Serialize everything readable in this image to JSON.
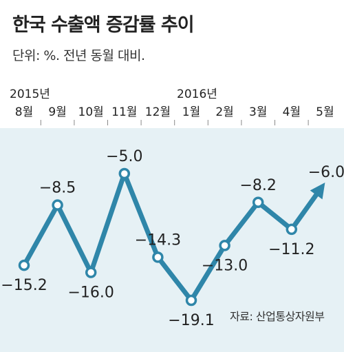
{
  "title": "한국 수출액 증감률 추이",
  "unit_note": "단위: %. 전년 동월 대비.",
  "source": "자료: 산업통상자원부",
  "colors": {
    "line": "#2f86a9",
    "plot_bg": "#e6f1f5",
    "point_fill": "#ffffff"
  },
  "chart_data": {
    "type": "line",
    "title": "한국 수출액 증감률 추이",
    "ylabel": "%",
    "year_labels": [
      {
        "label": "2015년",
        "category_index": 0
      },
      {
        "label": "2016년",
        "category_index": 5
      }
    ],
    "categories": [
      "8월",
      "9월",
      "10월",
      "11월",
      "12월",
      "1월",
      "2월",
      "3월",
      "4월",
      "5월"
    ],
    "series": [
      {
        "values": [
          -15.2,
          -8.5,
          -16.0,
          -5.0,
          -14.3,
          -19.1,
          -13.0,
          -8.2,
          -11.2,
          -6.0
        ]
      }
    ],
    "labels": [
      "−15.2",
      "−8.5",
      "−16.0",
      "−5.0",
      "−14.3",
      "−19.1",
      "−13.0",
      "−8.2",
      "−11.2",
      "−6.0"
    ],
    "label_positions": [
      "below",
      "above",
      "below",
      "above",
      "above",
      "below",
      "below",
      "above",
      "below",
      "above"
    ],
    "last_point_marker": "arrow",
    "ylim": [
      -20,
      -4
    ],
    "grid": false
  }
}
